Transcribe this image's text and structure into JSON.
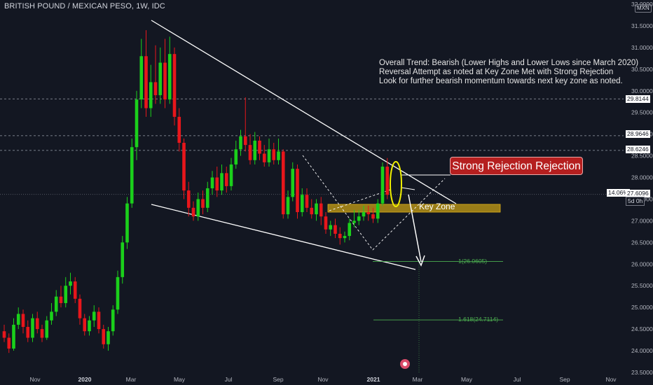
{
  "header": {
    "title": "BRITISH POUND / MEXICAN PESO, 1W, IDC",
    "currency": "MXN"
  },
  "annotations": {
    "note_lines": [
      "Overall Trend: Bearish (Lower Highs and Lower Lows since March 2020)",
      "Reversal Attempt as noted at Key Zone Met with Strong Rejection",
      "Look for further bearish momentum towards next key zone as noted."
    ],
    "callout": "Strong Rejection Rejection",
    "key_zone": "Key Zone",
    "fib_1": "1(26.0605)",
    "fib_1618": "1.618(24.7114)"
  },
  "price_badges": {
    "pct": "14.06%",
    "current": "27.6096",
    "countdown": "5d 0h",
    "level_a": "29.8144",
    "level_b": "28.9646",
    "level_c": "28.6246"
  },
  "colors": {
    "up": "#1bd01b",
    "down": "#e8161b",
    "background": "#131722",
    "zone": "#c8a015",
    "fib": "#4caf50"
  },
  "chart_data": {
    "type": "candlestick",
    "title": "BRITISH POUND / MEXICAN PESO, 1W, IDC",
    "ylim": [
      23.5,
      32.0
    ],
    "y_ticks": [
      "23.5000",
      "24.0000",
      "24.5000",
      "25.0000",
      "25.5000",
      "26.0000",
      "26.5000",
      "27.0000",
      "27.5000",
      "28.0000",
      "28.5000",
      "29.0000",
      "29.5000",
      "30.0000",
      "30.5000",
      "31.0000",
      "31.5000",
      "32.0000"
    ],
    "x_ticks": [
      "Nov",
      "2020",
      "Mar",
      "May",
      "Jul",
      "Sep",
      "Nov",
      "2021",
      "Mar",
      "May",
      "Jul",
      "Sep",
      "Nov"
    ],
    "horizontal_levels": [
      29.8144,
      28.9646,
      28.6246,
      27.6096
    ],
    "fib_levels": [
      {
        "label": "1(26.0605)",
        "value": 26.0605
      },
      {
        "label": "1.618(24.7114)",
        "value": 24.7114
      }
    ],
    "key_zone": [
      27.2,
      27.38
    ],
    "candles": [
      [
        24.45,
        24.3,
        24.6,
        24.2
      ],
      [
        24.3,
        24.05,
        24.4,
        23.95
      ],
      [
        24.05,
        24.6,
        24.75,
        24.0
      ],
      [
        24.6,
        24.85,
        25.0,
        24.5
      ],
      [
        24.85,
        24.55,
        24.95,
        24.4
      ],
      [
        24.55,
        24.3,
        24.7,
        24.2
      ],
      [
        24.3,
        24.75,
        24.85,
        24.2
      ],
      [
        24.75,
        24.5,
        24.9,
        24.4
      ],
      [
        24.5,
        24.3,
        24.6,
        24.2
      ],
      [
        24.3,
        24.7,
        24.8,
        24.25
      ],
      [
        24.7,
        24.9,
        25.1,
        24.6
      ],
      [
        24.9,
        25.25,
        25.4,
        24.8
      ],
      [
        25.25,
        25.1,
        25.5,
        25.0
      ],
      [
        25.1,
        25.5,
        25.7,
        25.0
      ],
      [
        25.5,
        25.6,
        25.8,
        25.3
      ],
      [
        25.6,
        25.2,
        25.7,
        25.1
      ],
      [
        25.2,
        24.75,
        25.3,
        24.6
      ],
      [
        24.75,
        24.45,
        24.85,
        24.35
      ],
      [
        24.45,
        24.7,
        24.8,
        24.35
      ],
      [
        24.7,
        24.9,
        25.05,
        24.55
      ],
      [
        24.9,
        24.5,
        25.0,
        24.4
      ],
      [
        24.5,
        24.15,
        24.6,
        24.05
      ],
      [
        24.15,
        24.45,
        24.55,
        24.0
      ],
      [
        24.45,
        24.95,
        25.05,
        24.35
      ],
      [
        24.95,
        25.7,
        25.85,
        24.85
      ],
      [
        25.7,
        26.5,
        26.65,
        25.55
      ],
      [
        26.5,
        27.4,
        27.55,
        26.35
      ],
      [
        27.4,
        28.7,
        28.9,
        27.3
      ],
      [
        28.7,
        29.8,
        30.0,
        28.4
      ],
      [
        29.8,
        30.8,
        31.2,
        29.6
      ],
      [
        30.8,
        29.6,
        31.4,
        29.4
      ],
      [
        29.6,
        30.2,
        30.6,
        29.4
      ],
      [
        30.2,
        29.9,
        31.05,
        29.7
      ],
      [
        29.9,
        30.65,
        31.0,
        29.7
      ],
      [
        30.65,
        29.8,
        31.2,
        29.6
      ],
      [
        29.8,
        30.85,
        31.25,
        29.7
      ],
      [
        30.85,
        29.4,
        31.0,
        29.2
      ],
      [
        29.4,
        28.8,
        29.6,
        28.6
      ],
      [
        28.8,
        27.7,
        28.9,
        27.5
      ],
      [
        27.7,
        27.3,
        27.9,
        27.1
      ],
      [
        27.3,
        27.1,
        27.45,
        27.0
      ],
      [
        27.1,
        27.5,
        27.65,
        27.0
      ],
      [
        27.5,
        27.3,
        27.7,
        27.15
      ],
      [
        27.3,
        27.75,
        27.9,
        27.2
      ],
      [
        27.75,
        28.0,
        28.15,
        27.6
      ],
      [
        28.0,
        27.7,
        28.25,
        27.55
      ],
      [
        27.7,
        28.1,
        28.3,
        27.6
      ],
      [
        28.1,
        27.8,
        28.25,
        27.65
      ],
      [
        27.8,
        28.3,
        28.45,
        27.7
      ],
      [
        28.3,
        28.65,
        28.85,
        28.2
      ],
      [
        28.65,
        28.95,
        29.1,
        28.5
      ],
      [
        28.95,
        28.75,
        29.85,
        28.6
      ],
      [
        28.75,
        28.4,
        29.0,
        28.3
      ],
      [
        28.4,
        28.85,
        29.05,
        28.3
      ],
      [
        28.85,
        28.55,
        28.95,
        28.4
      ],
      [
        28.55,
        28.35,
        28.75,
        28.25
      ],
      [
        28.35,
        28.65,
        28.9,
        28.25
      ],
      [
        28.65,
        28.4,
        28.8,
        28.3
      ],
      [
        28.4,
        28.6,
        28.9,
        28.3
      ],
      [
        28.6,
        27.15,
        28.65,
        27.05
      ],
      [
        27.15,
        27.55,
        27.7,
        27.05
      ],
      [
        27.55,
        28.2,
        28.35,
        27.45
      ],
      [
        28.2,
        27.2,
        28.3,
        27.05
      ],
      [
        27.2,
        27.6,
        27.75,
        27.1
      ],
      [
        27.6,
        27.3,
        27.75,
        27.2
      ],
      [
        27.3,
        27.15,
        27.5,
        27.05
      ],
      [
        27.15,
        27.4,
        27.5,
        27.0
      ],
      [
        27.4,
        27.1,
        27.55,
        26.9
      ],
      [
        27.1,
        26.8,
        27.2,
        26.7
      ],
      [
        26.8,
        26.9,
        27.0,
        26.65
      ],
      [
        26.9,
        26.7,
        27.05,
        26.6
      ],
      [
        26.7,
        26.6,
        26.85,
        26.45
      ],
      [
        26.6,
        26.65,
        26.75,
        26.5
      ],
      [
        26.65,
        26.95,
        27.05,
        26.55
      ],
      [
        26.95,
        27.0,
        27.25,
        26.85
      ],
      [
        27.0,
        27.1,
        27.25,
        26.9
      ],
      [
        27.1,
        27.2,
        27.35,
        27.0
      ],
      [
        27.2,
        27.15,
        27.35,
        27.0
      ],
      [
        27.15,
        27.05,
        27.3,
        26.95
      ],
      [
        27.05,
        27.4,
        27.5,
        26.95
      ],
      [
        27.4,
        28.25,
        28.35,
        27.35
      ],
      [
        28.25,
        27.6,
        28.45,
        27.5
      ]
    ]
  }
}
